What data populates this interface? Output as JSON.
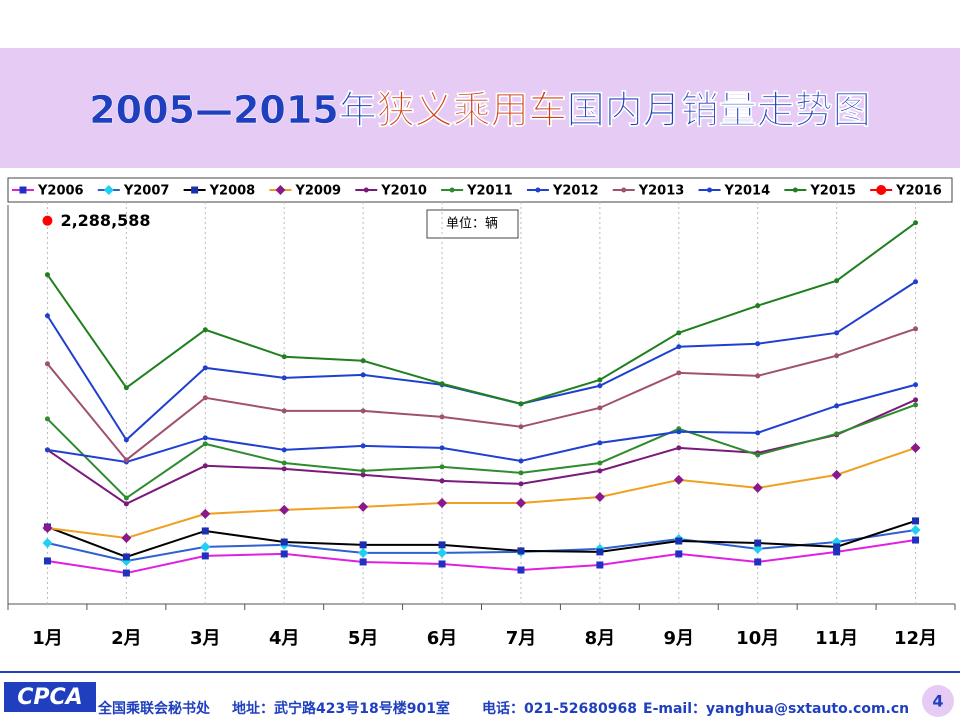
{
  "chart_data": {
    "type": "line",
    "title_parts": [
      {
        "text": "2005—2015年",
        "color": "#1f3fbf"
      },
      {
        "text": "狭义乘用车",
        "color": "#d0401a"
      },
      {
        "text": "国内月销量走势图",
        "color": "#1f3fbf"
      }
    ],
    "unit_label": "单位：辆",
    "categories": [
      "1月",
      "2月",
      "3月",
      "4月",
      "5月",
      "6月",
      "7月",
      "8月",
      "9月",
      "10月",
      "11月",
      "12月"
    ],
    "ylim": [
      0,
      2400000
    ],
    "series": [
      {
        "name": "Y2006",
        "color": "#e020e0",
        "marker_color": "#2030c0",
        "marker": "square",
        "values": [
          257000,
          185000,
          287000,
          299000,
          251000,
          239000,
          203000,
          233000,
          299000,
          251000,
          311000,
          382000
        ]
      },
      {
        "name": "Y2007",
        "color": "#2f5fd0",
        "marker_color": "#20d0f0",
        "marker": "diamond",
        "values": [
          364000,
          257000,
          341000,
          353000,
          305000,
          305000,
          311000,
          329000,
          388000,
          329000,
          370000,
          442000
        ]
      },
      {
        "name": "Y2008",
        "color": "#000000",
        "marker_color": "#1a30b0",
        "marker": "square",
        "values": [
          460000,
          281000,
          436000,
          370000,
          353000,
          353000,
          317000,
          311000,
          376000,
          364000,
          341000,
          496000
        ]
      },
      {
        "name": "Y2009",
        "color": "#f0a020",
        "marker_color": "#8a1a8a",
        "marker": "diamond",
        "values": [
          454000,
          394000,
          538000,
          562000,
          580000,
          603000,
          603000,
          639000,
          741000,
          693000,
          771000,
          932000
        ]
      },
      {
        "name": "Y2010",
        "color": "#7a1a7a",
        "marker_color": "#7a1a7a",
        "marker": "circle",
        "values": [
          920000,
          598000,
          825000,
          807000,
          771000,
          735000,
          717000,
          795000,
          932000,
          902000,
          1010000,
          1219000
        ]
      },
      {
        "name": "Y2011",
        "color": "#2e8b2e",
        "marker_color": "#2e8b2e",
        "marker": "circle",
        "values": [
          1105000,
          633000,
          956000,
          842000,
          795000,
          819000,
          783000,
          842000,
          1046000,
          890000,
          1016000,
          1189000
        ]
      },
      {
        "name": "Y2012",
        "color": "#2040d0",
        "marker_color": "#2040d0",
        "marker": "circle",
        "values": [
          920000,
          848000,
          992000,
          920000,
          944000,
          932000,
          854000,
          962000,
          1028000,
          1022000,
          1183000,
          1309000
        ]
      },
      {
        "name": "Y2013",
        "color": "#a05070",
        "marker_color": "#a05070",
        "marker": "circle",
        "values": [
          1434000,
          860000,
          1231000,
          1153000,
          1153000,
          1117000,
          1058000,
          1171000,
          1380000,
          1362000,
          1482000,
          1643000
        ]
      },
      {
        "name": "Y2014",
        "color": "#1f3fd0",
        "marker_color": "#1f3fd0",
        "marker": "circle",
        "values": [
          1721000,
          980000,
          1410000,
          1350000,
          1368000,
          1309000,
          1195000,
          1303000,
          1536000,
          1554000,
          1619000,
          1924000
        ]
      },
      {
        "name": "Y2015",
        "color": "#208020",
        "marker_color": "#208020",
        "marker": "circle",
        "values": [
          1966000,
          1291000,
          1637000,
          1476000,
          1452000,
          1315000,
          1195000,
          1338000,
          1619000,
          1781000,
          1930000,
          2276000
        ]
      },
      {
        "name": "Y2016",
        "color": "#ff0000",
        "marker_color": "#ff0000",
        "marker": "bigcircle",
        "values": [
          2288588,
          null,
          null,
          null,
          null,
          null,
          null,
          null,
          null,
          null,
          null,
          null
        ],
        "value_labels": [
          "2,288,588",
          null,
          null,
          null,
          null,
          null,
          null,
          null,
          null,
          null,
          null,
          null
        ]
      }
    ]
  },
  "footer": {
    "logo": "CPCA",
    "org": "全国乘联会秘书处",
    "address": "地址：武宁路423号18号楼901室",
    "phone": "电话：021-52680968",
    "email": "E-mail：yanghua@sxtauto.com.cn",
    "page": "4"
  }
}
